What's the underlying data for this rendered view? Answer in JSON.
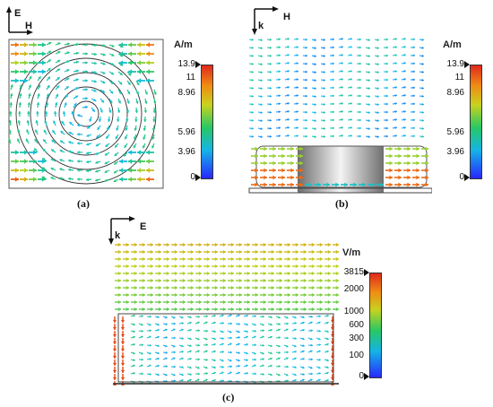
{
  "panels": [
    {
      "id": "a",
      "caption": "(a)",
      "axes": {
        "vertical": "E",
        "horizontal": "H"
      },
      "unit": "A/m",
      "ticks": [
        "13.9",
        "11",
        "8.96",
        "5.96",
        "3.96",
        "0"
      ]
    },
    {
      "id": "b",
      "caption": "(b)",
      "axes": {
        "vertical": "k",
        "horizontal": "H"
      },
      "unit": "A/m",
      "ticks": [
        "13.9",
        "11",
        "8.96",
        "5.96",
        "3.96",
        "0"
      ]
    },
    {
      "id": "c",
      "caption": "(c)",
      "axes": {
        "vertical": "k",
        "horizontal": "E"
      },
      "unit": "V/m",
      "ticks": [
        "3815",
        "2000",
        "1000",
        "600",
        "300",
        "100",
        "0"
      ]
    }
  ],
  "colors": {
    "low": "#1e64ff",
    "mid": "#19c8a0",
    "high": "#e83c1e",
    "frame": "#333333"
  }
}
